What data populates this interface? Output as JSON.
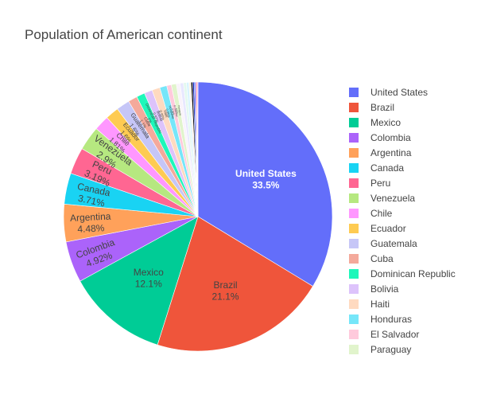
{
  "chart_data": {
    "type": "pie",
    "title": "Population of American continent",
    "textinfo": "label+percent",
    "direction": "clockwise",
    "slices": [
      {
        "label": "United States",
        "percent": 33.5,
        "percent_text": "33.5%",
        "color": "#636efa",
        "text_color": "#ffffff"
      },
      {
        "label": "Brazil",
        "percent": 21.1,
        "percent_text": "21.1%",
        "color": "#ef553b",
        "text_color": "#444444"
      },
      {
        "label": "Mexico",
        "percent": 12.1,
        "percent_text": "12.1%",
        "color": "#00cc96",
        "text_color": "#444444"
      },
      {
        "label": "Colombia",
        "percent": 4.92,
        "percent_text": "4.92%",
        "color": "#ab63fa",
        "text_color": "#444444"
      },
      {
        "label": "Argentina",
        "percent": 4.48,
        "percent_text": "4.48%",
        "color": "#ffa15a",
        "text_color": "#444444"
      },
      {
        "label": "Canada",
        "percent": 3.71,
        "percent_text": "3.71%",
        "color": "#19d3f3",
        "text_color": "#444444"
      },
      {
        "label": "Peru",
        "percent": 3.19,
        "percent_text": "3.19%",
        "color": "#ff6692",
        "text_color": "#444444"
      },
      {
        "label": "Venezuela",
        "percent": 2.9,
        "percent_text": "2.9%",
        "color": "#b6e880",
        "text_color": "#444444"
      },
      {
        "label": "Chile",
        "percent": 1.81,
        "percent_text": "1.81%",
        "color": "#ff97ff",
        "text_color": "#444444"
      },
      {
        "label": "Ecuador",
        "percent": 1.6,
        "percent_text": "1.6%",
        "color": "#fecb52",
        "text_color": "#444444"
      },
      {
        "label": "Guatemala",
        "percent": 1.6,
        "percent_text": "1.6%",
        "color": "#c6c6f7",
        "text_color": "#444444"
      },
      {
        "label": "Cuba",
        "percent": 1.1,
        "percent_text": "1.1%",
        "color": "#f4a99b",
        "text_color": "#444444"
      },
      {
        "label": "Dominican Republic",
        "percent": 1.0,
        "percent_text": "1%",
        "color": "#1ef7ba",
        "text_color": "#444444"
      },
      {
        "label": "Bolivia",
        "percent": 0.97,
        "percent_text": "0.97%",
        "color": "#ddc3fb",
        "text_color": "#444444"
      },
      {
        "label": "Haiti",
        "percent": 0.95,
        "percent_text": "0.95%",
        "color": "#ffdac0",
        "text_color": "#444444"
      },
      {
        "label": "Honduras",
        "percent": 0.85,
        "percent_text": "0.85%",
        "color": "#76e6f9",
        "text_color": "#444444"
      },
      {
        "label": "El Salvador",
        "percent": 0.55,
        "percent_text": "0.55%",
        "color": "#ffcadc",
        "text_color": "#444444"
      },
      {
        "label": "Paraguay",
        "percent": 0.6,
        "percent_text": "0.6%",
        "color": "#e1f4cc",
        "text_color": "#444444"
      },
      {
        "label": "",
        "percent": 0.45,
        "percent_text": "",
        "color": "#f9f3fb",
        "text_color": "#444444"
      },
      {
        "label": "",
        "percent": 0.4,
        "percent_text": "",
        "color": "#e8e8ff",
        "text_color": "#444444"
      },
      {
        "label": "",
        "percent": 0.35,
        "percent_text": "",
        "color": "#e4f9ef",
        "text_color": "#444444"
      },
      {
        "label": "",
        "percent": 0.3,
        "percent_text": "",
        "color": "#d8f4ff",
        "text_color": "#444444"
      },
      {
        "label": "",
        "percent": 0.25,
        "percent_text": "",
        "color": "#fff0e4",
        "text_color": "#444444"
      },
      {
        "label": "",
        "percent": 0.2,
        "percent_text": "",
        "color": "#000000",
        "text_color": "#444444"
      },
      {
        "label": "",
        "percent": 0.17,
        "percent_text": "",
        "color": "#0a14b4",
        "text_color": "#444444"
      },
      {
        "label": "",
        "percent": 0.15,
        "percent_text": "",
        "color": "#1e5aff",
        "text_color": "#444444"
      },
      {
        "label": "",
        "percent": 0.12,
        "percent_text": "",
        "color": "#ff66cc",
        "text_color": "#444444"
      },
      {
        "label": "",
        "percent": 0.1,
        "percent_text": "",
        "color": "#ff3b3b",
        "text_color": "#444444"
      },
      {
        "label": "",
        "percent": 0.08,
        "percent_text": "",
        "color": "#c83cb4",
        "text_color": "#444444"
      }
    ],
    "legend": {
      "placement": "right",
      "entries": [
        {
          "label": "United States",
          "color": "#636efa"
        },
        {
          "label": "Brazil",
          "color": "#ef553b"
        },
        {
          "label": "Mexico",
          "color": "#00cc96"
        },
        {
          "label": "Colombia",
          "color": "#ab63fa"
        },
        {
          "label": "Argentina",
          "color": "#ffa15a"
        },
        {
          "label": "Canada",
          "color": "#19d3f3"
        },
        {
          "label": "Peru",
          "color": "#ff6692"
        },
        {
          "label": "Venezuela",
          "color": "#b6e880"
        },
        {
          "label": "Chile",
          "color": "#ff97ff"
        },
        {
          "label": "Ecuador",
          "color": "#fecb52"
        },
        {
          "label": "Guatemala",
          "color": "#c6c6f7"
        },
        {
          "label": "Cuba",
          "color": "#f4a99b"
        },
        {
          "label": "Dominican Republic",
          "color": "#1ef7ba"
        },
        {
          "label": "Bolivia",
          "color": "#ddc3fb"
        },
        {
          "label": "Haiti",
          "color": "#ffdac0"
        },
        {
          "label": "Honduras",
          "color": "#76e6f9"
        },
        {
          "label": "El Salvador",
          "color": "#ffcadc"
        },
        {
          "label": "Paraguay",
          "color": "#e1f4cc"
        }
      ]
    }
  }
}
